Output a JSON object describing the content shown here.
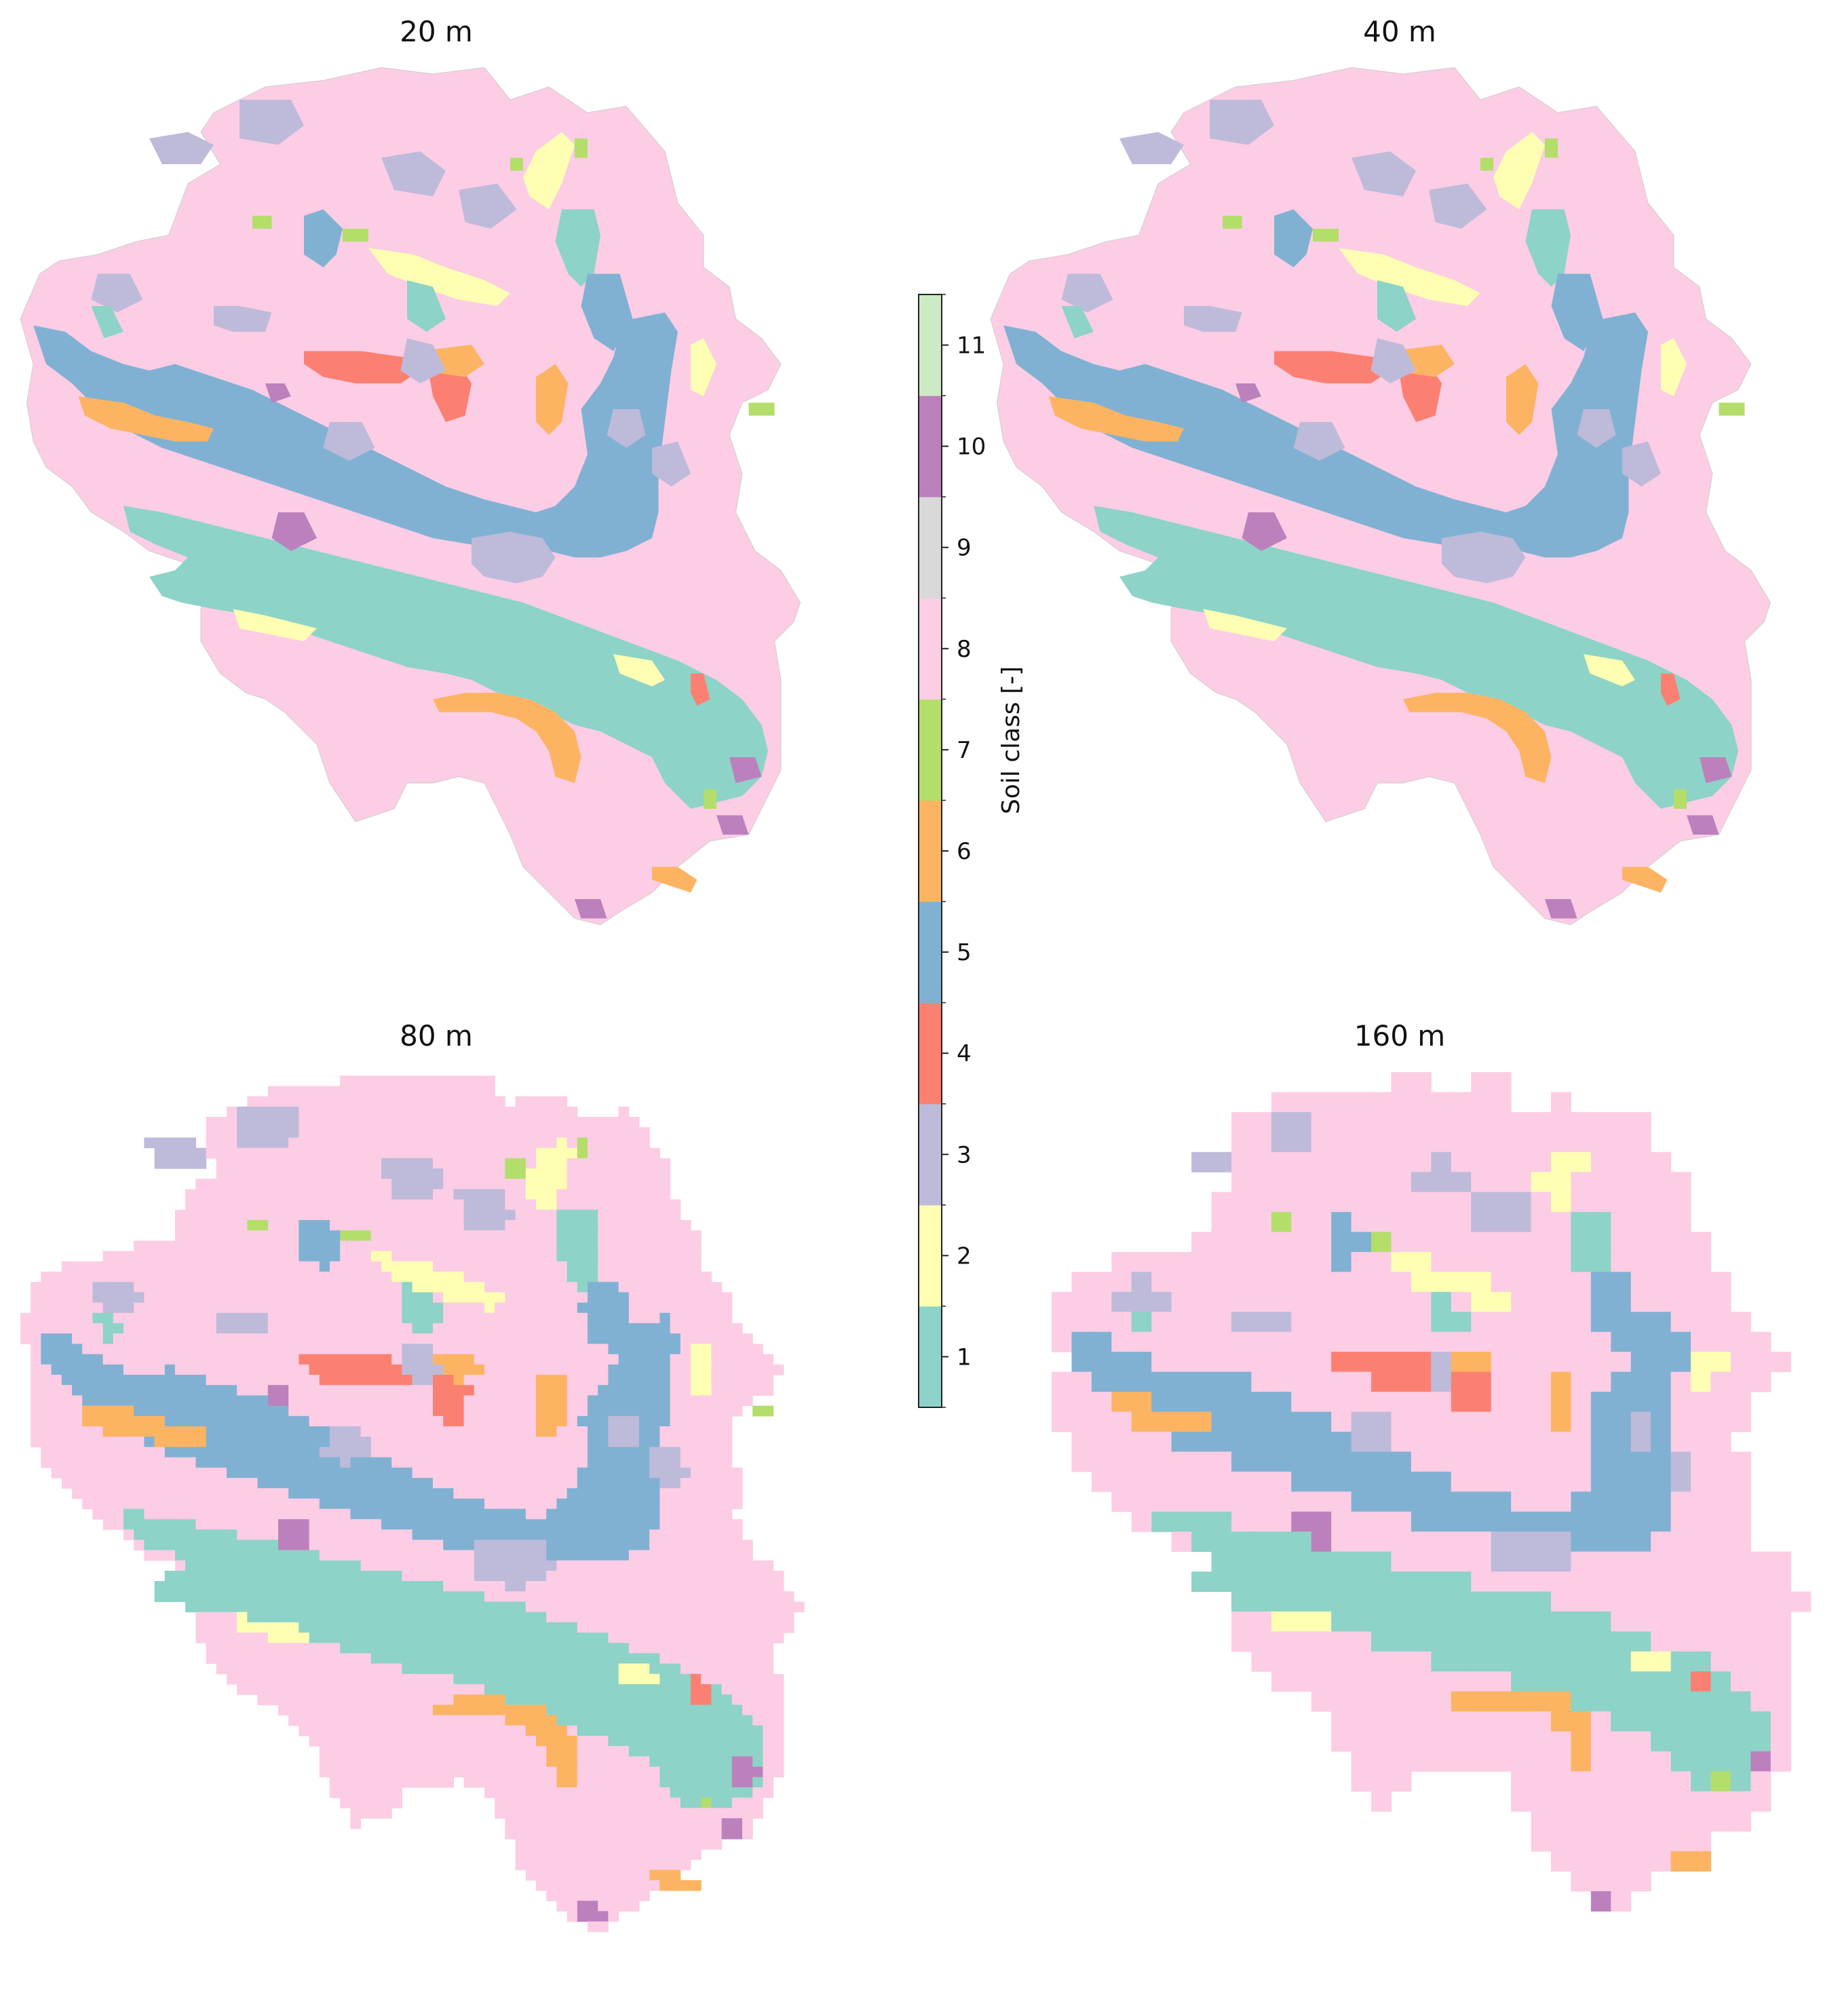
{
  "panels": [
    {
      "title": "20 m",
      "style": "smooth"
    },
    {
      "title": "40 m",
      "style": "smooth"
    },
    {
      "title": "80 m",
      "style": "pixel-small"
    },
    {
      "title": "160 m",
      "style": "pixel-large"
    }
  ],
  "colorbar": {
    "label": "Soil class [-]",
    "classes": [
      {
        "value": "1",
        "color": "#8dd3c7"
      },
      {
        "value": "2",
        "color": "#ffffb3"
      },
      {
        "value": "3",
        "color": "#bebada"
      },
      {
        "value": "4",
        "color": "#fb8072"
      },
      {
        "value": "5",
        "color": "#80b1d3"
      },
      {
        "value": "6",
        "color": "#fdb462"
      },
      {
        "value": "7",
        "color": "#b3de69"
      },
      {
        "value": "8",
        "color": "#fccde5"
      },
      {
        "value": "9",
        "color": "#d9d9d9"
      },
      {
        "value": "10",
        "color": "#bc80bd"
      },
      {
        "value": "11",
        "color": "#ccebc5"
      }
    ]
  }
}
